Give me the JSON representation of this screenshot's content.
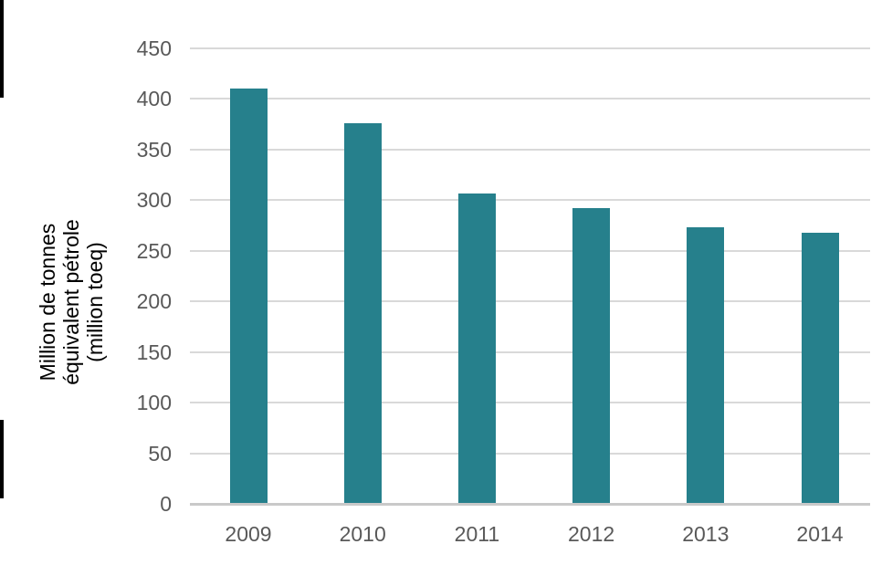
{
  "figure": {
    "background": "#ffffff",
    "border_color": "#000000"
  },
  "chart_data": {
    "type": "bar",
    "title": "",
    "categories": [
      "2009",
      "2010",
      "2011",
      "2012",
      "2013",
      "2014"
    ],
    "values": [
      410,
      376,
      307,
      292,
      273,
      268
    ],
    "xlabel": "",
    "ylabel": "Million de tonnes équivalent pétrole (million toeq)",
    "ylabel_lines": [
      "Million de tonnes",
      "équivalent pétrole",
      "(million toeq)"
    ],
    "ylim": [
      0,
      450
    ],
    "yticks": [
      450,
      400,
      350,
      300,
      250,
      200,
      150,
      100,
      50,
      0
    ],
    "grid": true,
    "legend": false,
    "bar_color": "#26808C",
    "gridline_color": "#d9d9d9",
    "axis_line_color": "#c9c9c9",
    "tick_label_color": "#595959",
    "axis_title_color": "#000000"
  }
}
